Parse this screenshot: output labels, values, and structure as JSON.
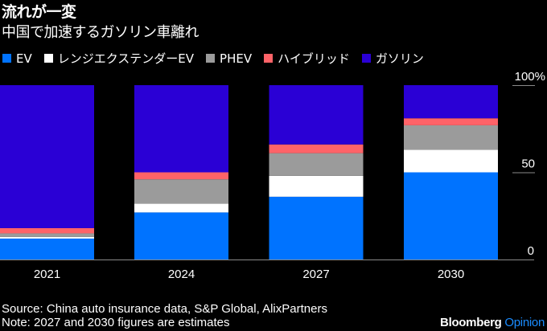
{
  "header": {
    "title": "流れが一変",
    "subtitle": "中国で加速するガソリン車離れ"
  },
  "chart_data": {
    "type": "bar",
    "stacked": true,
    "title": "流れが一変",
    "subtitle": "中国で加速するガソリン車離れ",
    "categories": [
      "2021",
      "2024",
      "2027",
      "2030"
    ],
    "series": [
      {
        "name": "EV",
        "color": "#0073ff",
        "values": [
          12,
          27,
          36,
          50
        ]
      },
      {
        "name": "レンジエクステンダーEV",
        "color": "#ffffff",
        "values": [
          1,
          5,
          12,
          13
        ]
      },
      {
        "name": "PHEV",
        "color": "#9b9b9b",
        "values": [
          2,
          14,
          13,
          14
        ]
      },
      {
        "name": "ハイブリッド",
        "color": "#ff6368",
        "values": [
          3,
          4,
          5,
          4
        ]
      },
      {
        "name": "ガソリン",
        "color": "#2a00d5",
        "values": [
          82,
          50,
          34,
          19
        ]
      }
    ],
    "xlabel": "",
    "ylabel": "",
    "ylim": [
      0,
      100
    ],
    "yticks": [
      {
        "value": 100,
        "label": "100%"
      },
      {
        "value": 50,
        "label": "50"
      },
      {
        "value": 0,
        "label": "0"
      }
    ],
    "grid": false,
    "legend_position": "top-left",
    "y_axis_side": "right"
  },
  "footer": {
    "source": "Source: China auto insurance data, S&P Global, AlixPartners",
    "note": "Note: 2027 and 2030 figures are estimates"
  },
  "brand": {
    "name": "Bloomberg",
    "suffix": "Opinion"
  }
}
